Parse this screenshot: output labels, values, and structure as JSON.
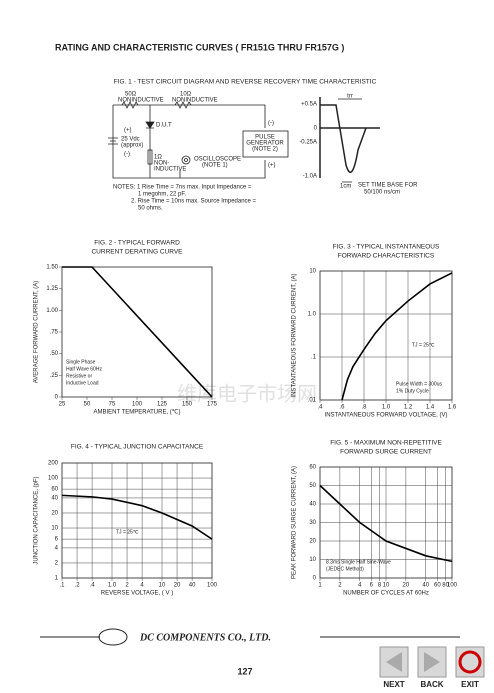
{
  "header": {
    "title": "RATING AND CHARACTERISTIC CURVES ( FR151G THRU FR157G )"
  },
  "figure1": {
    "title": "FIG. 1 - TEST CIRCUIT DIAGRAM  AND REVERSE RECOVERY TIME CHARACTERISTIC",
    "labels": [
      "50Ω",
      "NONINDUCTIVE",
      "10Ω",
      "NONINDUCTIVE",
      "(+)",
      "25 Vdc",
      "(approx)",
      "(-)",
      "D.U.T",
      "1Ω",
      "NON-",
      "INDUCTIVE",
      "OSCILLOSCOPE",
      "(NOTE 1)",
      "PULSE",
      "GENERATOR",
      "(NOTE 2)",
      "(-)",
      "(+)"
    ],
    "waveform": {
      "trr": "trr",
      "levels": [
        "+0.5A",
        "0",
        "-0.25A",
        "-1.0A"
      ],
      "scale": "1cm",
      "timebase": [
        "SET TIME BASE FOR",
        "50/100 ns/cm"
      ]
    },
    "notes": [
      "NOTES: 1  Rise Time = 7ns max. Input Impedance =",
      "1 megohm, 22 pF.",
      "2. Rise Time = 10ns max. Source Impedance =",
      "50 ohms."
    ]
  },
  "chart_data": [
    {
      "type": "line",
      "title": "FIG. 2 - TYPICAL FORWARD",
      "subtitle": "CURRENT DERATING CURVE",
      "x_label": "AMBIENT TEMPERATURE, (℃)",
      "y_label": "AVERAGE FORWARD CURRENT, (A)",
      "annotations": [
        "Single Phase",
        "Half Wave 60Hz",
        "Resistive or",
        "Inductive Load"
      ],
      "x": [
        25,
        55,
        175
      ],
      "values": [
        1.5,
        1.5,
        0
      ],
      "color": "#000000",
      "xlim": [
        25,
        175
      ],
      "ylim": [
        0,
        1.5
      ],
      "xticks": [
        25,
        50,
        75,
        100,
        125,
        150,
        175
      ],
      "yticks": [
        0,
        {
          "value": 0.25,
          "label": ".25"
        },
        {
          "value": 0.5,
          "label": ".50"
        },
        {
          "value": 0.75,
          "label": ".75"
        },
        {
          "value": 1,
          "label": "1.00"
        },
        {
          "value": 1.25,
          "label": "1.25"
        },
        {
          "value": 1.5,
          "label": "1.50"
        }
      ],
      "grid": false
    },
    {
      "type": "line",
      "title": "FIG. 3 - TYPICAL INSTANTANEOUS",
      "subtitle": "FORWARD CHARACTERISTICS",
      "x_label": "INSTANTANEOUS FORWARD VOLTAGE, (V)",
      "y_label": "INSTANTANEOUS FORWARD CURRENT, (A)",
      "annotations": [
        "TJ = 25℃",
        "Pulse Width = 300us",
        "1% Duty Cycle"
      ],
      "x": [
        0.6,
        0.65,
        0.7,
        0.8,
        0.9,
        1.0,
        1.2,
        1.4,
        1.6
      ],
      "values": [
        0.01,
        0.03,
        0.06,
        0.15,
        0.35,
        0.7,
        2,
        5,
        9
      ],
      "color": "#000000",
      "xlim": [
        0.4,
        1.6
      ],
      "ylim": [
        0.01,
        10
      ],
      "ylog": true,
      "xticks": [
        {
          "value": 0.4,
          "label": ".4"
        },
        {
          "value": 0.6,
          "label": ".6"
        },
        {
          "value": 0.8,
          "label": ".8"
        },
        {
          "value": 1,
          "label": "1.0"
        },
        1.2,
        1.4,
        1.6
      ],
      "yticks": [
        {
          "value": 0.01,
          "label": ".01"
        },
        {
          "value": 0.1,
          "label": ".1"
        },
        {
          "value": 1,
          "label": "1.0"
        },
        10
      ],
      "grid": true
    },
    {
      "type": "line",
      "title": "FIG. 4 - TYPICAL JUNCTION CAPACITANCE",
      "x_label": "REVERSE VOLTAGE, ( V )",
      "y_label": "JUNCTION CAPACITANCE, (pF)",
      "annotations": [
        "TJ = 25℃"
      ],
      "x": [
        0.1,
        0.4,
        1,
        4,
        10,
        40,
        100
      ],
      "values": [
        45,
        42,
        38,
        28,
        20,
        11,
        6
      ],
      "color": "#000000",
      "xlim": [
        0.1,
        100
      ],
      "ylim": [
        1,
        200
      ],
      "xlog": true,
      "ylog": true,
      "xticks": [
        {
          "value": 0.1,
          "label": ".1"
        },
        {
          "value": 0.2,
          "label": ".2"
        },
        {
          "value": 0.4,
          "label": ".4"
        },
        {
          "value": 1,
          "label": "1.0"
        },
        2,
        4,
        10,
        20,
        40,
        100
      ],
      "yticks": [
        1,
        2,
        4,
        6,
        10,
        20,
        40,
        60,
        100,
        200
      ],
      "grid": true
    },
    {
      "type": "line",
      "title": "FIG. 5 - MAXIMUM NON-REPETITIVE",
      "subtitle": "FORWARD SURGE CURRENT",
      "x_label": "NUMBER OF CYCLES AT 60Hz",
      "y_label": "PEAK FORWARD SURGE CURRENT, (A)",
      "annotations": [
        "8.3ms Single Half Sine-Wave",
        "(JEDEC Method)"
      ],
      "x": [
        1,
        2,
        4,
        10,
        40,
        100
      ],
      "values": [
        50,
        40,
        30,
        20,
        12,
        9
      ],
      "color": "#000000",
      "xlim": [
        1,
        100
      ],
      "ylim": [
        0,
        60
      ],
      "xlog": true,
      "xticks": [
        1,
        2,
        4,
        6,
        8,
        10,
        20,
        40,
        60,
        80,
        100
      ],
      "yticks": [
        0,
        10,
        20,
        30,
        40,
        50,
        60
      ],
      "grid": true
    }
  ],
  "watermark": "维库电子市场网",
  "footer": {
    "company": "DC COMPONENTS CO.,  LTD.",
    "page": "127",
    "buttons": [
      "NEXT",
      "BACK",
      "EXIT"
    ]
  }
}
